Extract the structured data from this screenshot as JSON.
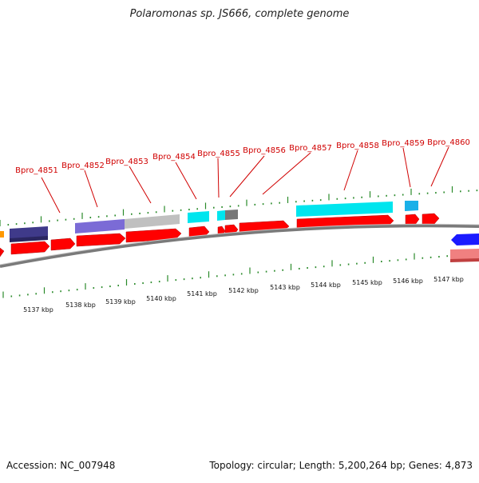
{
  "title": "Polaromonas sp. JS666, complete genome",
  "footer": {
    "accession": "Accession: NC_007948",
    "summary": "Topology: circular; Length: 5,200,264 bp; Genes: 4,873"
  },
  "gene_labels": [
    "Bpro_4851",
    "Bpro_4852",
    "Bpro_4853",
    "Bpro_4854",
    "Bpro_4855",
    "Bpro_4856",
    "Bpro_4857",
    "Bpro_4858",
    "Bpro_4859",
    "Bpro_4860"
  ],
  "scale_labels": [
    "5137 kbp",
    "5138 kbp",
    "5139 kbp",
    "5140 kbp",
    "5141 kbp",
    "5142 kbp",
    "5143 kbp",
    "5144 kbp",
    "5145 kbp",
    "5146 kbp",
    "5147 kbp"
  ],
  "colors": {
    "red_gene": "#ff0000",
    "cyan_feature": "#00e5ee",
    "purple_feature": "#7b6bd6",
    "navy_feature": "#3f3a8a",
    "gray_feature": "#c0c0c0",
    "darkgray_feature": "#777777",
    "blue_gene": "#1a1aff",
    "pink_feature": "#f08080",
    "tick_green": "#2a8a2a",
    "label_red": "#d00000",
    "backbone": "#777777"
  }
}
